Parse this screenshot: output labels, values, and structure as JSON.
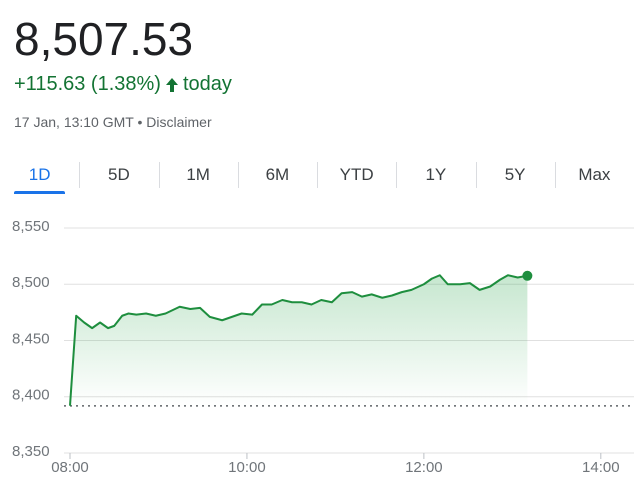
{
  "header": {
    "price": "8,507.53",
    "change": "+115.63 (1.38%)",
    "period": "today",
    "timestamp": "17 Jan, 13:10 GMT",
    "separator": "•",
    "disclaimer": "Disclaimer"
  },
  "tabs": [
    "1D",
    "5D",
    "1M",
    "6M",
    "YTD",
    "1Y",
    "5Y",
    "Max"
  ],
  "chart_data": {
    "type": "line",
    "color": "#1e8e3e",
    "grid": true,
    "x": [
      8.0,
      8.07,
      8.16,
      8.25,
      8.34,
      8.43,
      8.5,
      8.59,
      8.66,
      8.75,
      8.86,
      8.97,
      9.08,
      9.24,
      9.36,
      9.47,
      9.58,
      9.72,
      9.83,
      9.94,
      10.06,
      10.17,
      10.28,
      10.4,
      10.51,
      10.62,
      10.73,
      10.84,
      10.96,
      11.07,
      11.19,
      11.3,
      11.41,
      11.53,
      11.64,
      11.75,
      11.86,
      12.0,
      12.09,
      12.18,
      12.27,
      12.41,
      12.52,
      12.63,
      12.75,
      12.86,
      12.95,
      13.06,
      13.17
    ],
    "values": [
      8392,
      8472,
      8466,
      8461,
      8466,
      8461,
      8463,
      8472,
      8474,
      8473,
      8474,
      8472,
      8474,
      8480,
      8478,
      8479,
      8471,
      8468,
      8471,
      8474,
      8473,
      8482,
      8482,
      8486,
      8484,
      8484,
      8482,
      8486,
      8484,
      8492,
      8493,
      8489,
      8491,
      8488,
      8490,
      8493,
      8495,
      8500,
      8505,
      8508,
      8500,
      8500,
      8501,
      8495,
      8498,
      8504,
      8508,
      8506,
      8507.53
    ],
    "previous_close": 8391.9,
    "xlim": [
      8,
      14.33
    ],
    "ylim": [
      8350,
      8550
    ],
    "xticks": [
      {
        "value": 8,
        "label": "08:00"
      },
      {
        "value": 10,
        "label": "10:00"
      },
      {
        "value": 12,
        "label": "12:00"
      },
      {
        "value": 14,
        "label": "14:00"
      }
    ],
    "yticks": [
      {
        "value": 8350,
        "label": "8,350"
      },
      {
        "value": 8400,
        "label": "8,400"
      },
      {
        "value": 8450,
        "label": "8,450"
      },
      {
        "value": 8500,
        "label": "8,500"
      },
      {
        "value": 8550,
        "label": "8,550"
      }
    ]
  }
}
